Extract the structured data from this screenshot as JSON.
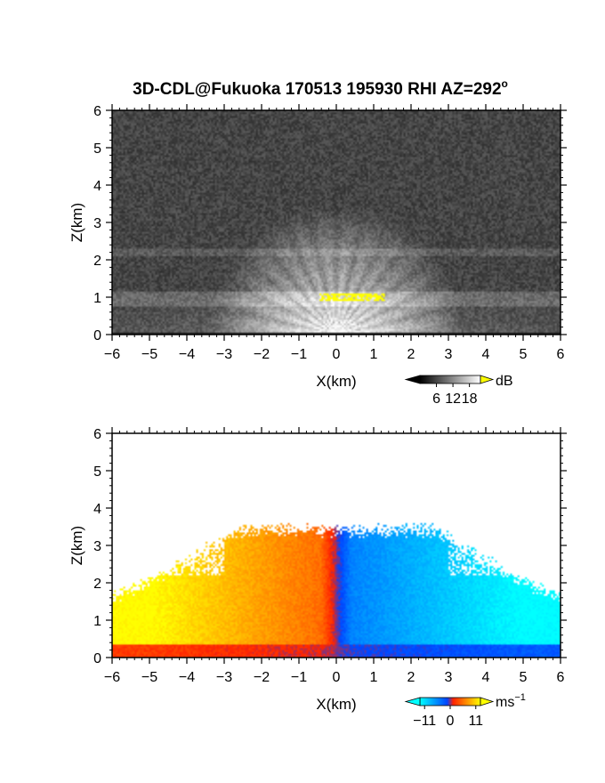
{
  "title": "3D-CDL@Fukuoka 170513 195930 RHI AZ=292",
  "title_superscript": "o",
  "chart_data": [
    {
      "type": "heatmap",
      "quantity": "reflectivity",
      "xlabel": "X(km)",
      "ylabel": "Z(km)",
      "xlim": [
        -6,
        6
      ],
      "ylim": [
        0,
        6
      ],
      "xticks": [
        -6,
        -5,
        -4,
        -3,
        -2,
        -1,
        0,
        1,
        2,
        3,
        4,
        5,
        6
      ],
      "yticks": [
        0,
        1,
        2,
        3,
        4,
        5,
        6
      ],
      "colormap": "grayscale",
      "colorbar": {
        "unit": "dB",
        "ticks": [
          6,
          12,
          18
        ],
        "range": [
          0,
          22
        ],
        "low_color": "#000000",
        "high_color": "#ffffff",
        "over_color": "#ffff00"
      },
      "features": {
        "background_level_db": 4,
        "bright_layer_top_km": 3.4,
        "saturated_patch_z_km": 1.0,
        "saturated_patch_x_km": [
          -0.45,
          1.3
        ],
        "saturated_color": "#ffff00"
      }
    },
    {
      "type": "heatmap",
      "quantity": "doppler_velocity",
      "xlabel": "X(km)",
      "ylabel": "Z(km)",
      "xlim": [
        -6,
        6
      ],
      "ylim": [
        0,
        6
      ],
      "xticks": [
        -6,
        -5,
        -4,
        -3,
        -2,
        -1,
        0,
        1,
        2,
        3,
        4,
        5,
        6
      ],
      "yticks": [
        0,
        1,
        2,
        3,
        4,
        5,
        6
      ],
      "colormap": "diverging",
      "colorbar": {
        "unit": "ms",
        "unit_superscript": "−1",
        "tick_labels": [
          "−11",
          "0",
          "11"
        ],
        "tick_values": [
          -11,
          0,
          11
        ],
        "range": [
          -13,
          13
        ],
        "colors": [
          "#00ffff",
          "#0044ff",
          "#ff2200",
          "#ffff00"
        ]
      },
      "features": {
        "echo_top_km": 3.4,
        "negative_side": "x>0",
        "positive_side": "x<0"
      }
    }
  ]
}
